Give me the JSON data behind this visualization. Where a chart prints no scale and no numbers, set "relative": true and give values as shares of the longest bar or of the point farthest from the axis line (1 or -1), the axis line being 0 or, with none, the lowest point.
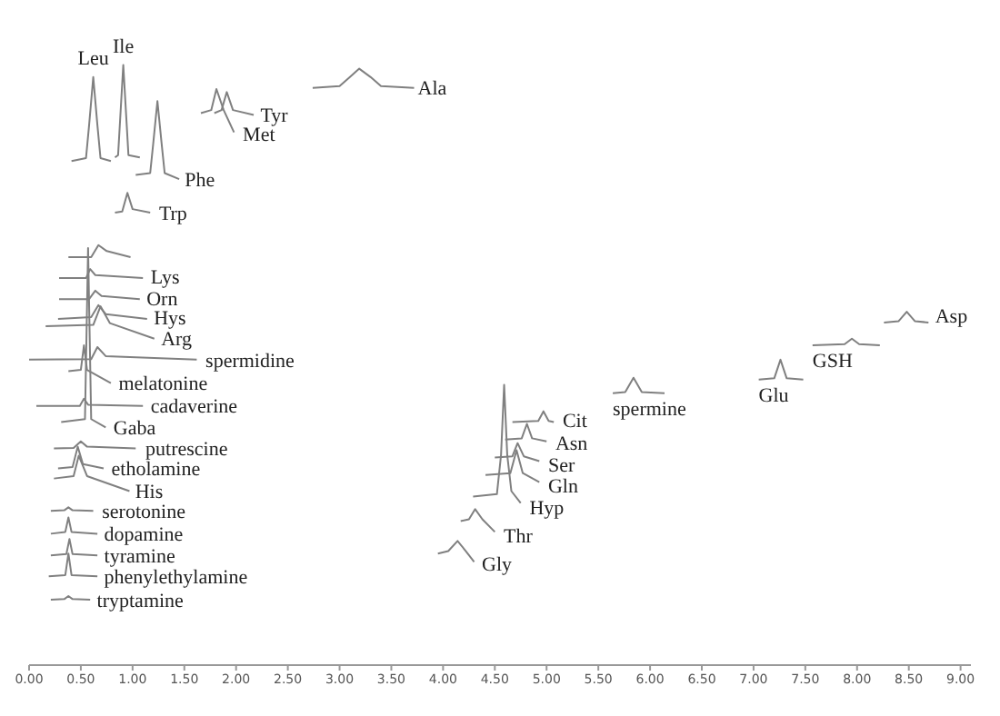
{
  "chart_data": {
    "type": "line",
    "relative": true,
    "marker": "none",
    "line_style": "solid",
    "grid": false,
    "xlim": [
      0,
      9.1
    ],
    "xticks": [
      {
        "value": 0,
        "label": "0.00"
      },
      {
        "value": 0.5,
        "label": "0.50"
      },
      {
        "value": 1,
        "label": "1.00"
      },
      {
        "value": 1.5,
        "label": "1.50"
      },
      {
        "value": 2,
        "label": "2.00"
      },
      {
        "value": 2.5,
        "label": "2.50"
      },
      {
        "value": 3,
        "label": "3.00"
      },
      {
        "value": 3.5,
        "label": "3.50"
      },
      {
        "value": 4,
        "label": "4.00"
      },
      {
        "value": 4.5,
        "label": "4.50"
      },
      {
        "value": 5,
        "label": "5.00"
      },
      {
        "value": 5.5,
        "label": "5.50"
      },
      {
        "value": 6,
        "label": "6.00"
      },
      {
        "value": 6.5,
        "label": "6.50"
      },
      {
        "value": 7,
        "label": "7.00"
      },
      {
        "value": 7.5,
        "label": "7.50"
      },
      {
        "value": 8,
        "label": "8.00"
      },
      {
        "value": 8.5,
        "label": "8.50"
      },
      {
        "value": 9,
        "label": "9.00"
      }
    ],
    "series": [
      {
        "color": "#808080",
        "x": [
          0.41,
          0.55,
          0.58,
          0.62,
          0.66,
          0.69,
          0.79
        ],
        "values": [
          0.84,
          0.845,
          0.9,
          0.98,
          0.9,
          0.845,
          0.84
        ]
      },
      {
        "color": "#808080",
        "x": [
          0.83,
          0.86,
          0.88,
          0.91,
          0.94,
          0.96,
          1.07
        ],
        "values": [
          0.846,
          0.85,
          0.91,
          1.0,
          0.91,
          0.85,
          0.846
        ]
      },
      {
        "color": "#808080",
        "x": [
          1.03,
          1.17,
          1.2,
          1.24,
          1.28,
          1.31,
          1.45
        ],
        "values": [
          0.817,
          0.82,
          0.87,
          0.94,
          0.87,
          0.82,
          0.81
        ]
      },
      {
        "color": "#808080",
        "x": [
          1.66,
          1.76,
          1.81,
          1.88,
          1.98
        ],
        "values": [
          0.92,
          0.925,
          0.96,
          0.925,
          0.888
        ]
      },
      {
        "color": "#808080",
        "x": [
          1.79,
          1.86,
          1.91,
          1.97,
          2.17
        ],
        "values": [
          0.92,
          0.925,
          0.955,
          0.925,
          0.917
        ]
      },
      {
        "color": "#808080",
        "x": [
          2.74,
          3.0,
          3.1,
          3.19,
          3.3,
          3.4,
          3.72
        ],
        "values": [
          0.962,
          0.965,
          0.98,
          0.994,
          0.98,
          0.965,
          0.962
        ]
      },
      {
        "color": "#808080",
        "x": [
          0.83,
          0.9,
          0.95,
          1.0,
          1.17
        ],
        "values": [
          0.754,
          0.756,
          0.787,
          0.76,
          0.754
        ]
      },
      {
        "color": "#808080",
        "x": [
          0.38,
          0.6,
          0.67,
          0.75,
          0.98
        ],
        "values": [
          0.68,
          0.68,
          0.7,
          0.69,
          0.68
        ]
      },
      {
        "color": "#808080",
        "x": [
          0.29,
          0.55,
          0.59,
          0.64,
          1.1
        ],
        "values": [
          0.645,
          0.645,
          0.66,
          0.65,
          0.645
        ]
      },
      {
        "color": "#808080",
        "x": [
          0.29,
          0.58,
          0.64,
          0.7,
          1.07
        ],
        "values": [
          0.61,
          0.61,
          0.624,
          0.615,
          0.61
        ]
      },
      {
        "color": "#808080",
        "x": [
          0.28,
          0.6,
          0.67,
          0.74,
          1.14
        ],
        "values": [
          0.577,
          0.58,
          0.6,
          0.585,
          0.577
        ]
      },
      {
        "color": "#808080",
        "x": [
          0.16,
          0.62,
          0.69,
          0.78,
          1.21
        ],
        "values": [
          0.565,
          0.567,
          0.598,
          0.57,
          0.544
        ]
      },
      {
        "color": "#808080",
        "x": [
          0,
          0.6,
          0.66,
          0.74,
          1.62
        ],
        "values": [
          0.509,
          0.51,
          0.53,
          0.515,
          0.509
        ]
      },
      {
        "color": "#808080",
        "x": [
          0.38,
          0.5,
          0.53,
          0.56,
          0.79
        ],
        "values": [
          0.49,
          0.492,
          0.533,
          0.492,
          0.47
        ]
      },
      {
        "color": "#808080",
        "x": [
          0.07,
          0.49,
          0.53,
          0.57,
          1.1
        ],
        "values": [
          0.432,
          0.432,
          0.444,
          0.434,
          0.432
        ]
      },
      {
        "color": "#808080",
        "x": [
          0.31,
          0.54,
          0.57,
          0.6,
          0.74
        ],
        "values": [
          0.405,
          0.41,
          0.695,
          0.41,
          0.396
        ]
      },
      {
        "color": "#808080",
        "x": [
          0.24,
          0.43,
          0.5,
          0.56,
          1.03
        ],
        "values": [
          0.361,
          0.362,
          0.373,
          0.364,
          0.361
        ]
      },
      {
        "color": "#808080",
        "x": [
          0.28,
          0.42,
          0.47,
          0.52,
          0.72
        ],
        "values": [
          0.328,
          0.33,
          0.364,
          0.335,
          0.328
        ]
      },
      {
        "color": "#808080",
        "x": [
          0.24,
          0.43,
          0.48,
          0.56,
          0.97
        ],
        "values": [
          0.311,
          0.315,
          0.349,
          0.315,
          0.29
        ]
      },
      {
        "color": "#808080",
        "x": [
          0.21,
          0.34,
          0.38,
          0.42,
          0.62
        ],
        "values": [
          0.257,
          0.258,
          0.263,
          0.258,
          0.257
        ]
      },
      {
        "color": "#808080",
        "x": [
          0.21,
          0.35,
          0.38,
          0.41,
          0.66
        ],
        "values": [
          0.219,
          0.222,
          0.246,
          0.222,
          0.219
        ]
      },
      {
        "color": "#808080",
        "x": [
          0.21,
          0.36,
          0.39,
          0.42,
          0.66
        ],
        "values": [
          0.183,
          0.185,
          0.21,
          0.185,
          0.183
        ]
      },
      {
        "color": "#808080",
        "x": [
          0.19,
          0.35,
          0.38,
          0.41,
          0.66
        ],
        "values": [
          0.148,
          0.15,
          0.186,
          0.15,
          0.148
        ]
      },
      {
        "color": "#808080",
        "x": [
          0.21,
          0.34,
          0.38,
          0.42,
          0.59
        ],
        "values": [
          0.109,
          0.11,
          0.115,
          0.11,
          0.109
        ]
      },
      {
        "color": "#808080",
        "x": [
          3.95,
          4.05,
          4.14,
          4.22,
          4.3
        ],
        "values": [
          0.186,
          0.19,
          0.207,
          0.19,
          0.172
        ]
      },
      {
        "color": "#808080",
        "x": [
          4.17,
          4.25,
          4.31,
          4.38,
          4.5
        ],
        "values": [
          0.24,
          0.243,
          0.26,
          0.243,
          0.222
        ]
      },
      {
        "color": "#808080",
        "x": [
          4.29,
          4.52,
          4.56,
          4.59,
          4.62,
          4.66,
          4.75
        ],
        "values": [
          0.281,
          0.285,
          0.35,
          0.467,
          0.35,
          0.29,
          0.27
        ]
      },
      {
        "color": "#808080",
        "x": [
          4.41,
          4.65,
          4.71,
          4.77,
          4.93
        ],
        "values": [
          0.317,
          0.32,
          0.358,
          0.32,
          0.305
        ]
      },
      {
        "color": "#808080",
        "x": [
          4.5,
          4.67,
          4.72,
          4.78,
          4.93
        ],
        "values": [
          0.346,
          0.348,
          0.37,
          0.348,
          0.34
        ]
      },
      {
        "color": "#808080",
        "x": [
          4.6,
          4.76,
          4.81,
          4.86,
          5.0
        ],
        "values": [
          0.376,
          0.378,
          0.402,
          0.378,
          0.373
        ]
      },
      {
        "color": "#808080",
        "x": [
          4.67,
          4.92,
          4.97,
          5.02,
          5.07
        ],
        "values": [
          0.405,
          0.407,
          0.423,
          0.407,
          0.405
        ]
      },
      {
        "color": "#808080",
        "x": [
          5.64,
          5.76,
          5.84,
          5.92,
          6.14
        ],
        "values": [
          0.453,
          0.455,
          0.479,
          0.455,
          0.453
        ]
      },
      {
        "color": "#808080",
        "x": [
          7.05,
          7.2,
          7.26,
          7.32,
          7.48
        ],
        "values": [
          0.476,
          0.478,
          0.509,
          0.478,
          0.476
        ]
      },
      {
        "color": "#808080",
        "x": [
          7.57,
          7.88,
          7.95,
          8.02,
          8.22
        ],
        "values": [
          0.533,
          0.535,
          0.544,
          0.535,
          0.533
        ]
      },
      {
        "color": "#808080",
        "x": [
          8.26,
          8.4,
          8.48,
          8.56,
          8.69
        ],
        "values": [
          0.571,
          0.573,
          0.589,
          0.573,
          0.571
        ]
      }
    ],
    "annotations": [
      {
        "text": "Leu",
        "x": 0.62,
        "y": 0.98
      },
      {
        "text": "Ile",
        "x": 0.91,
        "y": 1.0
      },
      {
        "text": "Phe",
        "x": 1.47,
        "y": 0.81
      },
      {
        "text": "Met",
        "x": 2.03,
        "y": 0.885
      },
      {
        "text": "Tyr",
        "x": 2.2,
        "y": 0.917
      },
      {
        "text": "Ala",
        "x": 3.72,
        "y": 0.962
      },
      {
        "text": "Trp",
        "x": 1.22,
        "y": 0.754
      },
      {
        "text": "Lys",
        "x": 1.14,
        "y": 0.648
      },
      {
        "text": "Orn",
        "x": 1.1,
        "y": 0.612
      },
      {
        "text": "Hys",
        "x": 1.17,
        "y": 0.58
      },
      {
        "text": "Arg",
        "x": 1.24,
        "y": 0.544
      },
      {
        "text": "spermidine",
        "x": 1.67,
        "y": 0.509
      },
      {
        "text": "melatonine",
        "x": 0.83,
        "y": 0.47
      },
      {
        "text": "cadaverine",
        "x": 1.14,
        "y": 0.432
      },
      {
        "text": "Gaba",
        "x": 0.78,
        "y": 0.396
      },
      {
        "text": "putrescine",
        "x": 1.09,
        "y": 0.361
      },
      {
        "text": "etholamine",
        "x": 0.76,
        "y": 0.328
      },
      {
        "text": "His",
        "x": 0.99,
        "y": 0.29
      },
      {
        "text": "serotonine",
        "x": 0.67,
        "y": 0.257
      },
      {
        "text": "dopamine",
        "x": 0.69,
        "y": 0.219
      },
      {
        "text": "tyramine",
        "x": 0.69,
        "y": 0.183
      },
      {
        "text": "phenylethylamine",
        "x": 0.69,
        "y": 0.148
      },
      {
        "text": "tryptamine",
        "x": 0.62,
        "y": 0.109
      },
      {
        "text": "Gly",
        "x": 4.34,
        "y": 0.169
      },
      {
        "text": "Thr",
        "x": 4.55,
        "y": 0.216
      },
      {
        "text": "Hyp",
        "x": 4.8,
        "y": 0.263
      },
      {
        "text": "Gln",
        "x": 4.98,
        "y": 0.299
      },
      {
        "text": "Ser",
        "x": 4.98,
        "y": 0.334
      },
      {
        "text": "Asn",
        "x": 5.05,
        "y": 0.37
      },
      {
        "text": "Cit",
        "x": 5.12,
        "y": 0.408
      },
      {
        "text": "spermine",
        "x": 5.64,
        "y": 0.453
      },
      {
        "text": "Glu",
        "x": 7.05,
        "y": 0.476
      },
      {
        "text": "GSH",
        "x": 7.57,
        "y": 0.533
      },
      {
        "text": "Asp",
        "x": 8.72,
        "y": 0.583
      }
    ]
  }
}
